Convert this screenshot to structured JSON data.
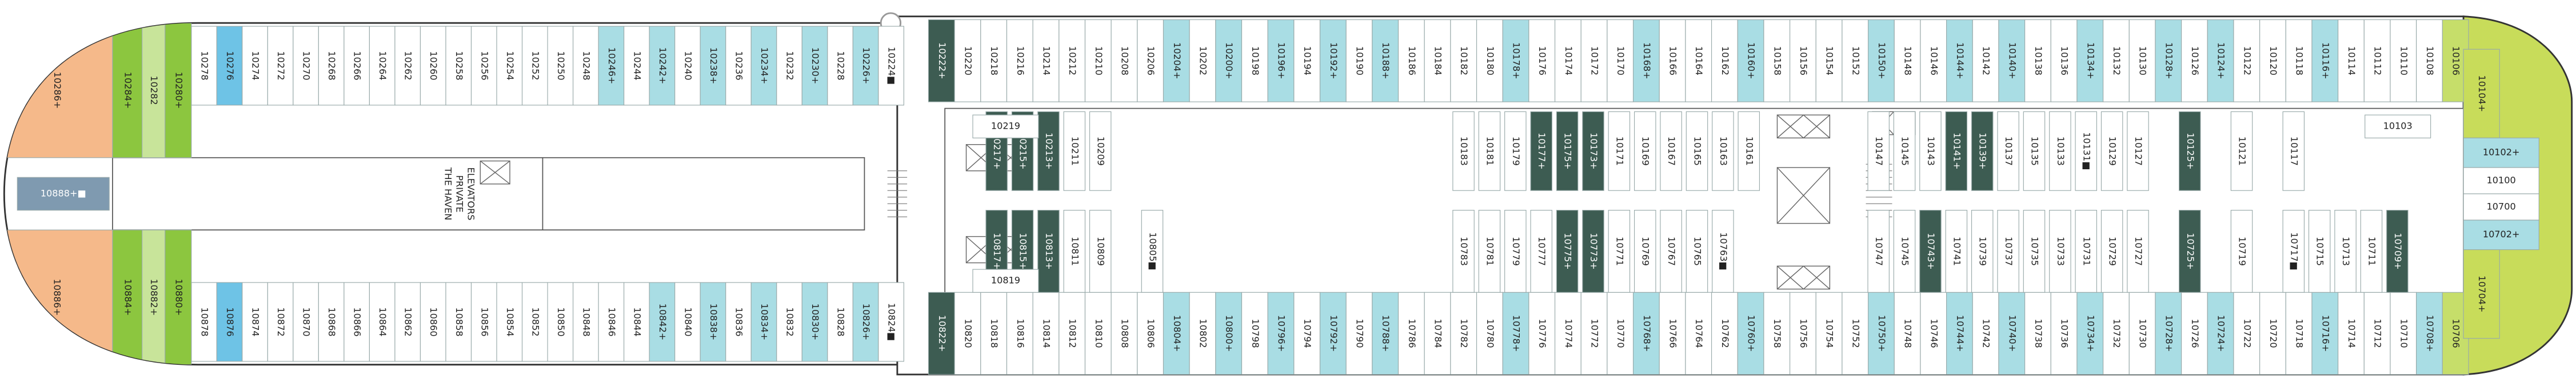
{
  "deck": {
    "haven_elevators": [
      "THE HAVEN",
      "PRIVATE",
      "ELEVATORS"
    ],
    "center_aft": {
      "label": "10888+■",
      "color": "#7f9ab0"
    },
    "rows": {
      "top_outer": {
        "plus_color": "#a9dde4",
        "cabins": [
          {
            "label": "10222+",
            "color": "#3d5c52"
          },
          "10220",
          "10218",
          "10216",
          "10214",
          "10212",
          "10210",
          "10208",
          "10206",
          "10204+",
          "10202",
          "10200+",
          "10198",
          "10196+",
          "10194",
          "10192+",
          "10190",
          "10188+",
          "10186",
          "10184",
          "10182",
          "10180",
          "10178+",
          "10176",
          "10174",
          "10172",
          "10170",
          "10168+",
          "10166",
          "10164",
          "10162",
          "10160+",
          "10158",
          "10156",
          "10154",
          "10152",
          "10150+",
          "10148",
          "10146",
          "10144+",
          "10142",
          "10140+",
          "10138",
          "10136",
          "10134+",
          "10132",
          "10130",
          "10128+",
          "10126",
          "10124+",
          "10122",
          "10120",
          "10118",
          "10116+",
          "10114",
          "10112",
          "10110",
          "10108",
          {
            "label": "10106",
            "color": "#c6de6a"
          }
        ]
      },
      "bottom_outer": {
        "plus_color": "#a9dde4",
        "cabins": [
          {
            "label": "10822+",
            "color": "#3d5c52"
          },
          "10820",
          "10818",
          "10816",
          "10814",
          "10812",
          "10810",
          "10808",
          "10806",
          "10804+",
          "10802",
          "10800+",
          "10798",
          "10796+",
          "10794",
          "10792+",
          "10790",
          "10788+",
          "10786",
          "10784",
          "10782",
          "10780",
          "10778+",
          "10776",
          "10774",
          "10772",
          "10770",
          "10768+",
          "10766",
          "10764",
          "10762",
          "10760+",
          "10758",
          "10756",
          "10754",
          "10752",
          "10750+",
          "10748",
          "10746",
          "10744+",
          "10742",
          "10740+",
          "10738",
          "10736",
          "10734+",
          "10732",
          "10730",
          "10728+",
          "10726",
          "10724+",
          "10722",
          "10720",
          "10718",
          "10716+",
          "10714",
          "10712",
          "10710",
          "10708+",
          {
            "label": "10706",
            "color": "#c6de6a"
          }
        ]
      },
      "left_top": {
        "plus_color": "#a9dde4",
        "cabins": [
          "10278",
          {
            "label": "10276",
            "color": "#6ec3e6"
          },
          "10274",
          "10272",
          "10270",
          "10268",
          "10266",
          "10264",
          "10262",
          "10260",
          "10258",
          "10256",
          "10254",
          "10252",
          "10250",
          "10248",
          "10246+",
          "10244",
          "10242+",
          "10240",
          "10238+",
          "10236",
          "10234+",
          "10232",
          "10230+",
          "10228",
          "10226+",
          "10224■"
        ]
      },
      "left_bottom": {
        "plus_color": "#a9dde4",
        "cabins": [
          "10878",
          {
            "label": "10876",
            "color": "#6ec3e6"
          },
          "10874",
          "10872",
          "10870",
          "10868",
          "10866",
          "10864",
          "10862",
          "10860",
          "10858",
          "10856",
          "10854",
          "10852",
          "10850",
          "10848",
          "10846",
          "10844",
          "10842+",
          "10840",
          "10838+",
          "10836",
          "10834+",
          "10832",
          "10830+",
          "10828",
          "10826+",
          "10824■"
        ]
      },
      "stern_top": {
        "plus_color": "#8cc63f",
        "cabins": [
          {
            "label": "10286+",
            "color": "#f5b98a"
          },
          {
            "label": "10284+",
            "color": "#8cc63f"
          },
          {
            "label": "10282",
            "color": "#c8e49a"
          },
          {
            "label": "10280+",
            "color": "#8cc63f"
          }
        ]
      },
      "stern_bottom": {
        "plus_color": "#8cc63f",
        "cabins": [
          {
            "label": "10886+",
            "color": "#f5b98a"
          },
          {
            "label": "10884+",
            "color": "#8cc63f"
          },
          {
            "label": "10882+",
            "color": "#c8e49a"
          },
          {
            "label": "10880+",
            "color": "#8cc63f"
          }
        ]
      },
      "inner_top": {
        "plus_color": "#3d5c52",
        "cabins": [
          "10217+",
          "10215+",
          "10213+",
          "10211",
          "10209",
          null,
          null,
          null,
          null,
          null,
          null,
          null,
          null,
          null,
          null,
          null,
          null,
          null,
          "10183",
          "10181",
          "10179",
          "10177+",
          "10175+",
          "10173+",
          "10171",
          "10169",
          "10167",
          "10165",
          "10163",
          "10161",
          null,
          null,
          null,
          null,
          "10147",
          "10145",
          "10143",
          "10141+",
          "10139+",
          "10137",
          "10135",
          "10133",
          "10131■",
          "10129",
          "10127",
          null,
          "10125+",
          null,
          "10121",
          null,
          "10117"
        ]
      },
      "inner_bottom": {
        "plus_color": "#3d5c52",
        "cabins": [
          "10817+",
          "10815+",
          "10813+",
          "10811",
          "10809",
          null,
          "10805■",
          null,
          null,
          null,
          null,
          null,
          null,
          null,
          null,
          null,
          null,
          null,
          "10783",
          "10781",
          "10779",
          "10777",
          "10775+",
          "10773+",
          "10771",
          "10769",
          "10767",
          "10765",
          "10763■",
          null,
          null,
          null,
          null,
          null,
          "10747",
          "10745",
          "10743+",
          "10741",
          "10739",
          "10737",
          "10735",
          "10733",
          "10731",
          "10729",
          "10727",
          null,
          "10725+",
          null,
          "10719",
          null,
          "10717■",
          "10715",
          "10713",
          "10711",
          "10709+"
        ]
      }
    },
    "inner_boxes": [
      "10219",
      "10819",
      "10103"
    ],
    "bow": [
      {
        "label": "10104+",
        "color": "#c8dc5a"
      },
      {
        "label": "10102+",
        "color": "#a9dde4"
      },
      {
        "label": "10100",
        "color": "#ffffff"
      },
      {
        "label": "10700",
        "color": "#ffffff"
      },
      {
        "label": "10702+",
        "color": "#a9dde4"
      },
      {
        "label": "10704+",
        "color": "#c8dc5a"
      }
    ]
  }
}
